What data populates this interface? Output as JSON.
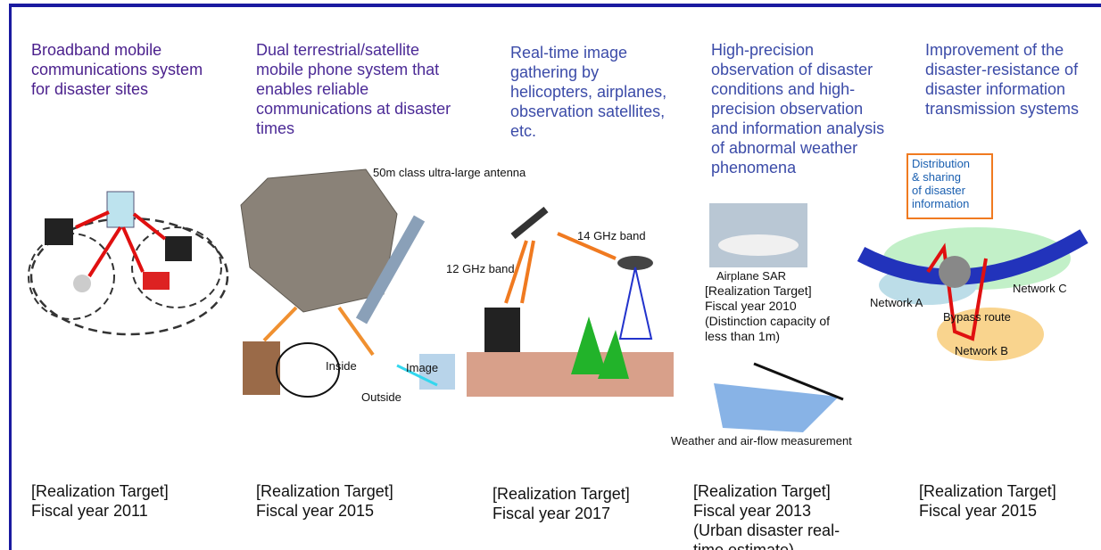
{
  "columns": [
    {
      "title_lines": [
        "Broadband mobile",
        "communications system",
        "for disaster sites"
      ],
      "target_lines": [
        "[Realization Target]",
        "Fiscal year 2011"
      ]
    },
    {
      "title_lines": [
        "Dual terrestrial/satellite",
        "mobile phone system that",
        "enables reliable",
        "communications at disaster",
        "times"
      ],
      "labels": [
        "50m class ultra-large antenna",
        "Inside",
        "Image",
        "Outside"
      ],
      "target_lines": [
        "[Realization Target]",
        "Fiscal year 2015"
      ]
    },
    {
      "title_lines": [
        "Real-time image",
        "gathering by",
        "helicopters, airplanes,",
        "observation satellites,",
        "etc."
      ],
      "labels": [
        "14 GHz band",
        "12 GHz band"
      ],
      "target_lines": [
        "[Realization Target]",
        "Fiscal year 2017"
      ]
    },
    {
      "title_lines": [
        "High-precision",
        "observation of disaster",
        "conditions and high-",
        "precision observation",
        "and information analysis",
        "of abnormal weather",
        "phenomena"
      ],
      "labels": [
        "Airplane SAR",
        "Weather and air-flow measurement"
      ],
      "sub_target_lines": [
        "[Realization Target]",
        "Fiscal year 2010",
        "(Distinction capacity of",
        "less than 1m)"
      ],
      "target_lines": [
        "[Realization Target]",
        "Fiscal year 2013",
        "(Urban disaster real-",
        "time estimate)"
      ]
    },
    {
      "title_lines": [
        "Improvement of the",
        "disaster-resistance of",
        "disaster information",
        "transmission systems"
      ],
      "labels": [
        "Distribution",
        "& sharing",
        "of disaster",
        "information",
        "Network A",
        "Network B",
        "Network C",
        "Bypass route"
      ],
      "target_lines": [
        "[Realization Target]",
        "Fiscal year 2015"
      ]
    }
  ]
}
